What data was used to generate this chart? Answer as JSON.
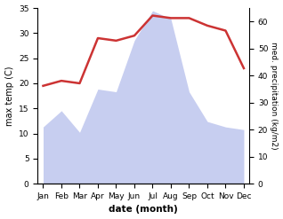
{
  "months": [
    "Jan",
    "Feb",
    "Mar",
    "Apr",
    "May",
    "Jun",
    "Jul",
    "Aug",
    "Sep",
    "Oct",
    "Nov",
    "Dec"
  ],
  "temperature": [
    19.5,
    20.5,
    20.0,
    29.0,
    28.5,
    29.5,
    33.5,
    33.0,
    33.0,
    31.5,
    30.5,
    23.0
  ],
  "precipitation_kg": [
    21,
    27,
    19,
    35,
    34,
    53,
    64,
    61,
    34,
    23,
    21,
    20
  ],
  "temp_ylim": [
    0,
    35
  ],
  "precip_ylim": [
    0,
    65
  ],
  "temp_yticks": [
    0,
    5,
    10,
    15,
    20,
    25,
    30,
    35
  ],
  "precip_yticks": [
    0,
    10,
    20,
    30,
    40,
    50,
    60
  ],
  "xlabel": "date (month)",
  "ylabel_left": "max temp (C)",
  "ylabel_right": "med. precipitation (kg/m2)",
  "line_color": "#cc3333",
  "fill_color": "#aab4e8",
  "fill_alpha": 0.65,
  "line_width": 1.8,
  "bg_color": "#ffffff"
}
